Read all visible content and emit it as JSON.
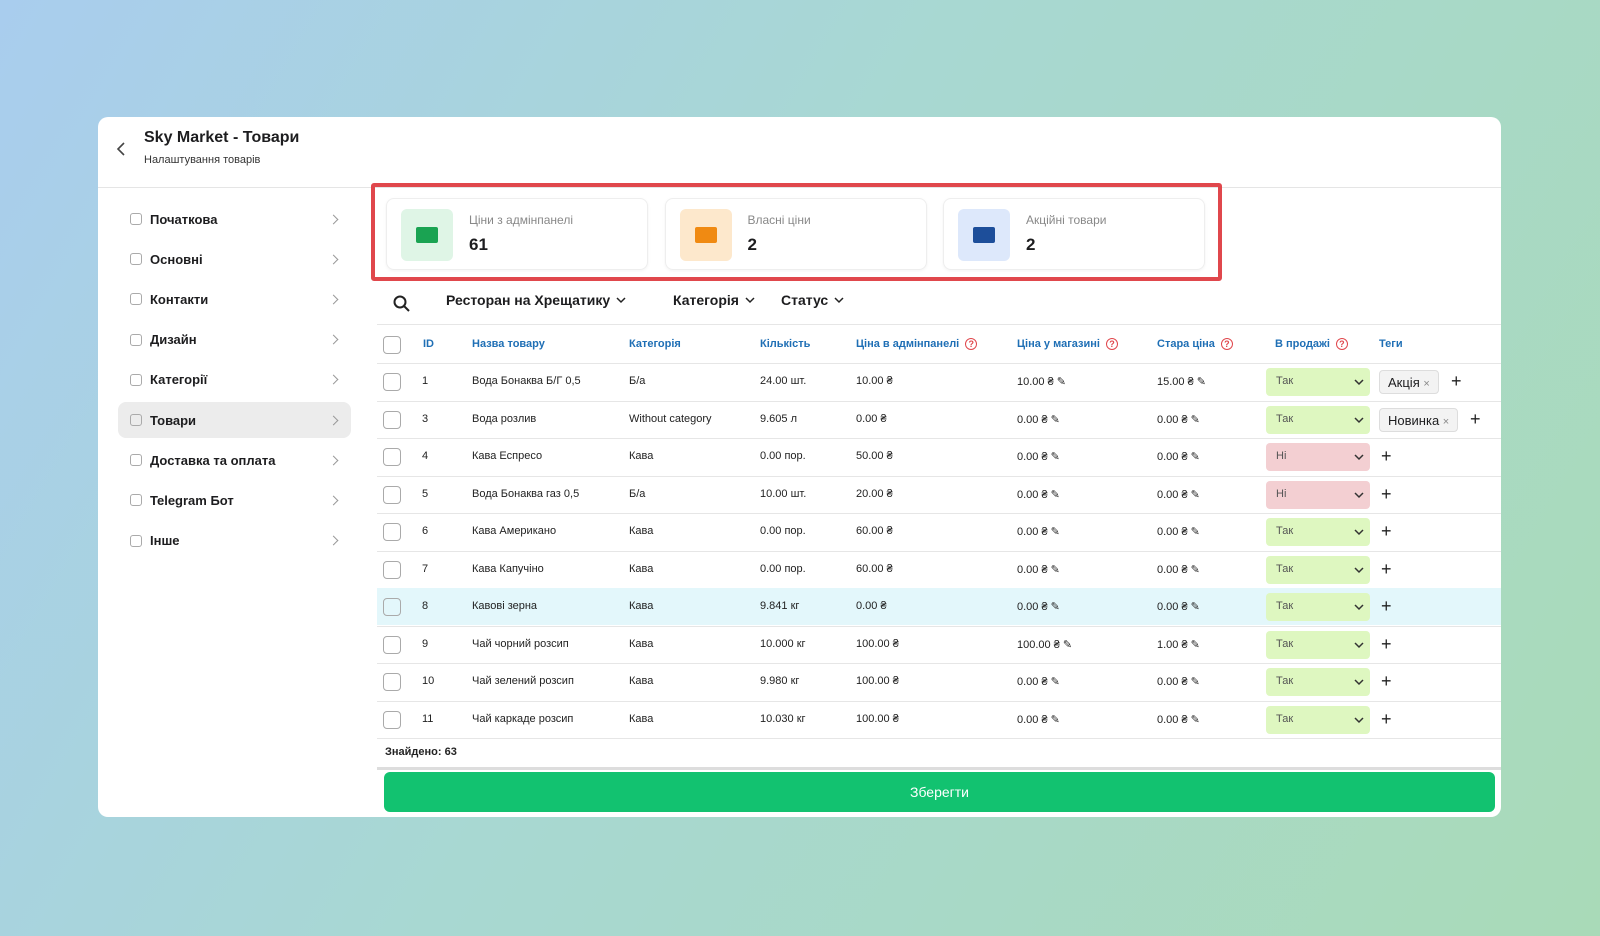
{
  "header": {
    "title": "Sky Market - Товари",
    "subtitle": "Налаштування товарів"
  },
  "menu": [
    "Початкова",
    "Основні",
    "Контакти",
    "Дизайн",
    "Категорії",
    "Товари",
    "Доставка та оплата",
    "Telegram Бот",
    "Інше"
  ],
  "stats": [
    {
      "label": "Ціни з адмінпанелі",
      "value": 61
    },
    {
      "label": "Власні ціни",
      "value": 2
    },
    {
      "label": "Акційні товари",
      "value": 2
    }
  ],
  "filters": [
    "Ресторан на Хрещатику",
    "Категорія",
    "Статус"
  ],
  "table": {
    "columns": [
      "ID",
      "Назва товару",
      "Категорія",
      "Кількість",
      "Ціна в адмінпанелі",
      "Ціна у магазині",
      "Стара ціна",
      "В продажі",
      "Теги"
    ],
    "rows": [
      [
        "1",
        "Вода Бонаква Б/Г 0,5",
        "Б/а",
        "24.00 шт.",
        "10.00 ₴",
        "10.00 ₴",
        "15.00 ₴",
        "Так",
        [
          "Акція"
        ]
      ],
      [
        "3",
        "Вода розлив",
        "Without category",
        "9.605 л",
        "0.00 ₴",
        "0.00 ₴",
        "0.00 ₴",
        "Так",
        [
          "Новинка"
        ]
      ],
      [
        "4",
        "Кава Еспресо",
        "Кава",
        "0.00 пор.",
        "50.00 ₴",
        "0.00 ₴",
        "0.00 ₴",
        "Ні",
        []
      ],
      [
        "5",
        "Вода Бонаква газ 0,5",
        "Б/а",
        "10.00 шт.",
        "20.00 ₴",
        "0.00 ₴",
        "0.00 ₴",
        "Ні",
        []
      ],
      [
        "6",
        "Кава Американо",
        "Кава",
        "0.00 пор.",
        "60.00 ₴",
        "0.00 ₴",
        "0.00 ₴",
        "Так",
        []
      ],
      [
        "7",
        "Кава Капучіно",
        "Кава",
        "0.00 пор.",
        "60.00 ₴",
        "0.00 ₴",
        "0.00 ₴",
        "Так",
        []
      ],
      [
        "8",
        "Кавові зерна",
        "Кава",
        "9.841 кг",
        "0.00 ₴",
        "0.00 ₴",
        "0.00 ₴",
        "Так",
        []
      ],
      [
        "9",
        "Чай чорний розсип",
        "Кава",
        "10.000 кг",
        "100.00 ₴",
        "100.00 ₴",
        "1.00 ₴",
        "Так",
        []
      ],
      [
        "10",
        "Чай зелений розсип",
        "Кава",
        "9.980 кг",
        "100.00 ₴",
        "0.00 ₴",
        "0.00 ₴",
        "Так",
        []
      ],
      [
        "11",
        "Чай каркаде розсип",
        "Кава",
        "10.030 кг",
        "100.00 ₴",
        "0.00 ₴",
        "0.00 ₴",
        "Так",
        []
      ]
    ]
  },
  "footer": {
    "found": "Знайдено: 63",
    "save": "Зберегти"
  }
}
